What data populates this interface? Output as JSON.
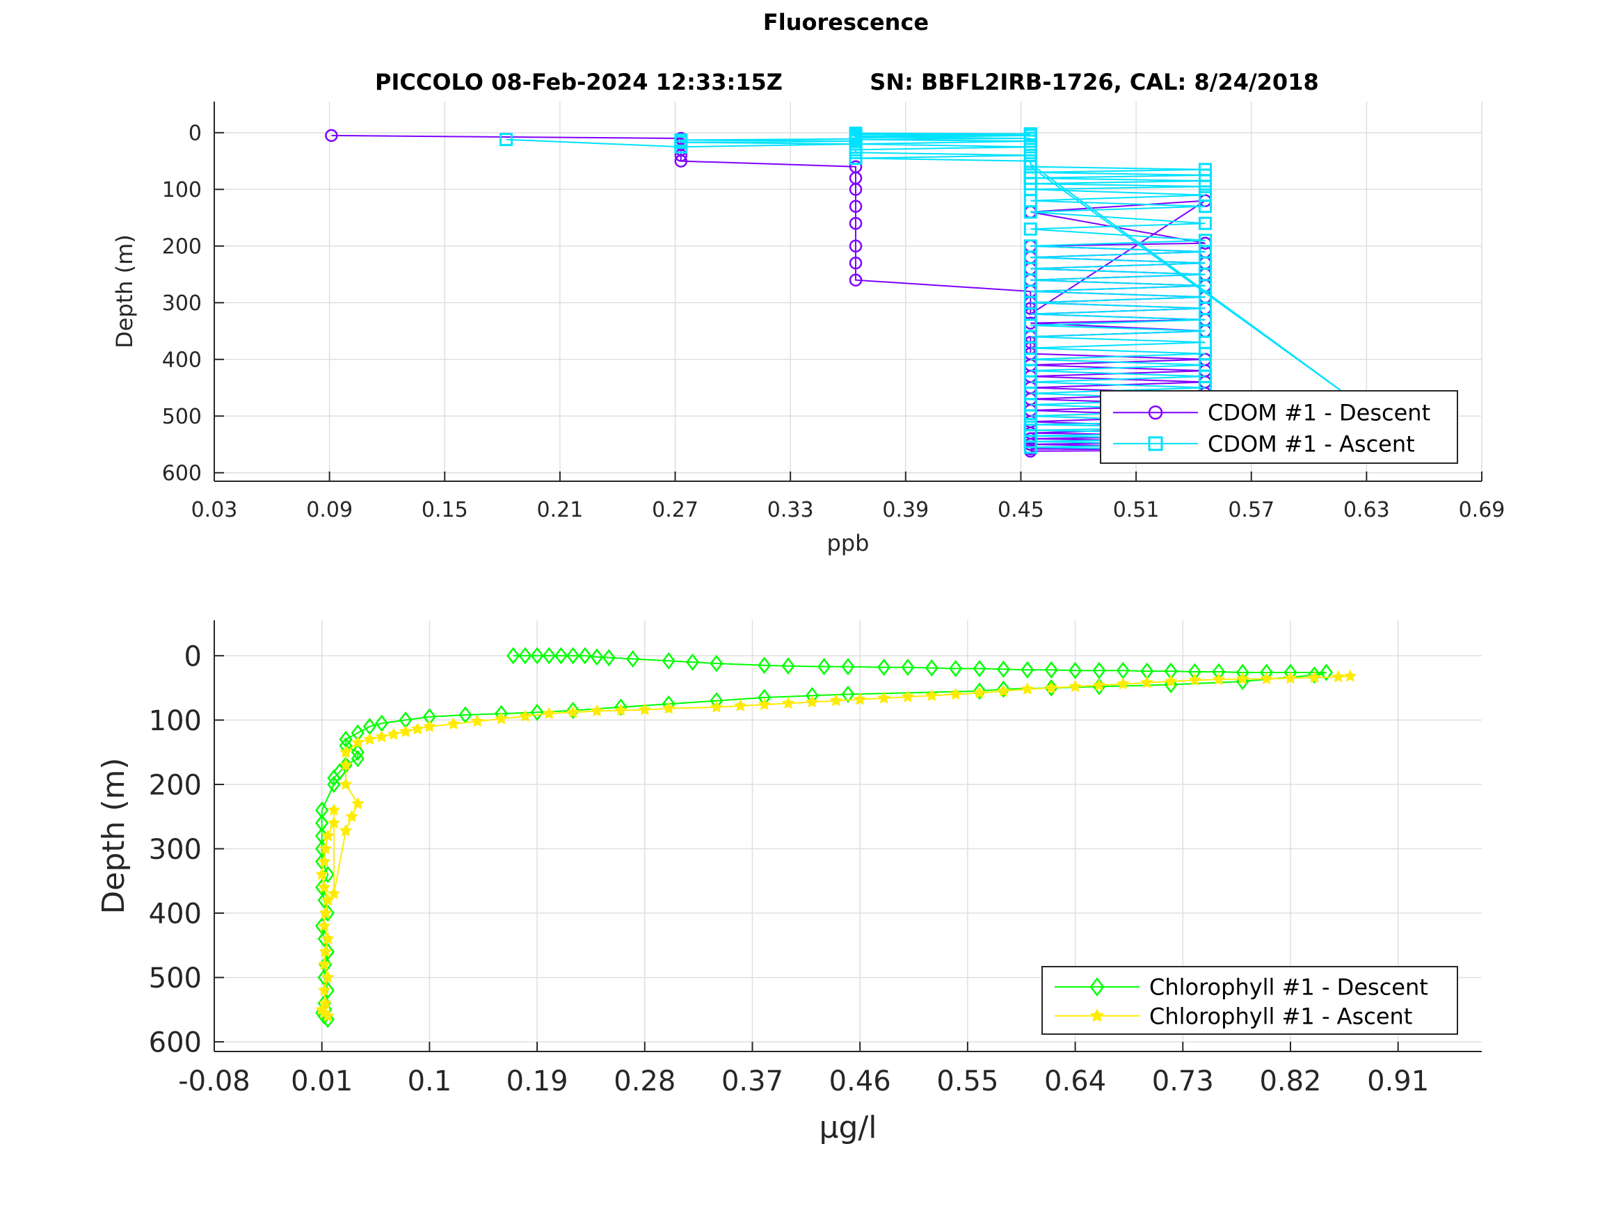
{
  "figure": {
    "title": "Fluorescence",
    "subtitle_left": "PICCOLO 08-Feb-2024 12:33:15Z",
    "subtitle_right": "SN: BBFL2IRB-1726, CAL: 8/24/2018"
  },
  "chart_data": [
    {
      "type": "line",
      "xlabel": "ppb",
      "ylabel": "Depth (m)",
      "xlim": [
        0.03,
        0.69
      ],
      "ylim": [
        -55,
        615
      ],
      "y_reversed": true,
      "xticks": [
        "0.03",
        "0.09",
        "0.15",
        "0.21",
        "0.27",
        "0.33",
        "0.39",
        "0.45",
        "0.51",
        "0.57",
        "0.63",
        "0.69"
      ],
      "yticks": [
        "0",
        "100",
        "200",
        "300",
        "400",
        "500",
        "600"
      ],
      "grid": true,
      "legend_position": "bottom-right",
      "series": [
        {
          "name": "CDOM #1 - Descent",
          "color": "#7f00ff",
          "marker": "circle",
          "x": [
            0.091,
            0.273,
            0.273,
            0.273,
            0.273,
            0.273,
            0.364,
            0.364,
            0.364,
            0.364,
            0.364,
            0.364,
            0.364,
            0.364,
            0.455,
            0.455,
            0.455,
            0.455,
            0.546,
            0.455,
            0.546,
            0.455,
            0.546,
            0.455,
            0.546,
            0.455,
            0.546,
            0.455,
            0.546,
            0.455,
            0.546,
            0.455,
            0.546,
            0.455,
            0.546,
            0.455,
            0.546,
            0.455,
            0.455,
            0.455,
            0.455,
            0.546,
            0.455,
            0.546,
            0.455,
            0.546,
            0.455,
            0.546,
            0.455,
            0.546,
            0.455,
            0.546,
            0.455,
            0.546,
            0.455,
            0.546,
            0.455,
            0.546,
            0.455,
            0.546,
            0.455,
            0.546,
            0.455
          ],
          "y": [
            5,
            10,
            20,
            30,
            40,
            50,
            60,
            80,
            100,
            130,
            160,
            200,
            230,
            260,
            280,
            300,
            310,
            320,
            120,
            140,
            195,
            200,
            210,
            220,
            230,
            240,
            250,
            260,
            270,
            280,
            290,
            300,
            310,
            320,
            330,
            336,
            350,
            360,
            370,
            380,
            390,
            400,
            410,
            420,
            430,
            440,
            450,
            460,
            470,
            480,
            490,
            500,
            510,
            520,
            530,
            535,
            540,
            545,
            550,
            555,
            558,
            560,
            562
          ]
        },
        {
          "name": "CDOM #1 - Ascent",
          "color": "#00e1ff",
          "marker": "square",
          "x": [
            0.546,
            0.455,
            0.546,
            0.455,
            0.546,
            0.455,
            0.546,
            0.455,
            0.546,
            0.455,
            0.546,
            0.455,
            0.546,
            0.455,
            0.546,
            0.455,
            0.546,
            0.455,
            0.546,
            0.455,
            0.546,
            0.455,
            0.546,
            0.455,
            0.546,
            0.455,
            0.546,
            0.455,
            0.546,
            0.455,
            0.546,
            0.455,
            0.546,
            0.455,
            0.546,
            0.455,
            0.546,
            0.455,
            0.546,
            0.455,
            0.546,
            0.455,
            0.546,
            0.455,
            0.546,
            0.455,
            0.546,
            0.455,
            0.546,
            0.455,
            0.546,
            0.455,
            0.546,
            0.455,
            0.546,
            0.455,
            0.546,
            0.455,
            0.637,
            0.455,
            0.455,
            0.364,
            0.455,
            0.364,
            0.364,
            0.455,
            0.364,
            0.455,
            0.364,
            0.455,
            0.364,
            0.364,
            0.455,
            0.364,
            0.455,
            0.364,
            0.455,
            0.364,
            0.364,
            0.273,
            0.364,
            0.273,
            0.364,
            0.273,
            0.182
          ],
          "y": [
            560,
            555,
            550,
            545,
            540,
            535,
            530,
            525,
            520,
            515,
            510,
            500,
            490,
            480,
            470,
            460,
            450,
            440,
            430,
            420,
            410,
            400,
            390,
            380,
            370,
            360,
            350,
            340,
            330,
            320,
            310,
            300,
            290,
            280,
            270,
            260,
            250,
            240,
            230,
            220,
            210,
            200,
            190,
            170,
            160,
            140,
            130,
            120,
            110,
            100,
            95,
            90,
            85,
            80,
            75,
            70,
            65,
            60,
            505,
            55,
            50,
            45,
            40,
            35,
            30,
            25,
            20,
            15,
            12,
            10,
            8,
            6,
            4,
            3,
            2,
            1,
            5,
            9,
            11,
            13,
            15,
            17,
            20,
            25,
            12
          ]
        }
      ]
    },
    {
      "type": "line",
      "xlabel": "μg/l",
      "ylabel": "Depth (m)",
      "xlim": [
        -0.08,
        0.98
      ],
      "ylim": [
        -55,
        615
      ],
      "y_reversed": true,
      "xticks": [
        "-0.08",
        "0.01",
        "0.1",
        "0.19",
        "0.28",
        "0.37",
        "0.46",
        "0.55",
        "0.64",
        "0.73",
        "0.82",
        "0.91"
      ],
      "yticks": [
        "0",
        "100",
        "200",
        "300",
        "400",
        "500",
        "600"
      ],
      "grid": true,
      "legend_position": "bottom-right",
      "series": [
        {
          "name": "Chlorophyll #1 - Descent",
          "color": "#00ff00",
          "marker": "diamond",
          "x": [
            0.17,
            0.18,
            0.19,
            0.2,
            0.21,
            0.22,
            0.23,
            0.24,
            0.25,
            0.27,
            0.3,
            0.32,
            0.34,
            0.38,
            0.4,
            0.43,
            0.45,
            0.48,
            0.5,
            0.52,
            0.54,
            0.56,
            0.58,
            0.6,
            0.62,
            0.64,
            0.66,
            0.68,
            0.7,
            0.72,
            0.74,
            0.76,
            0.78,
            0.8,
            0.82,
            0.85,
            0.84,
            0.78,
            0.72,
            0.66,
            0.62,
            0.58,
            0.56,
            0.45,
            0.42,
            0.38,
            0.34,
            0.3,
            0.26,
            0.22,
            0.19,
            0.16,
            0.13,
            0.1,
            0.08,
            0.06,
            0.05,
            0.04,
            0.03,
            0.03,
            0.04,
            0.04,
            0.03,
            0.025,
            0.02,
            0.02,
            0.01,
            0.01,
            0.01,
            0.01,
            0.01,
            0.015,
            0.01,
            0.012,
            0.015,
            0.01,
            0.012,
            0.015,
            0.013,
            0.012,
            0.015,
            0.012,
            0.013,
            0.01,
            0.012,
            0.015
          ],
          "y": [
            0,
            0,
            0,
            0,
            0,
            0,
            0,
            2,
            3,
            5,
            8,
            10,
            12,
            15,
            16,
            17,
            17,
            18,
            18,
            19,
            20,
            20,
            21,
            22,
            22,
            23,
            23,
            23,
            24,
            24,
            25,
            25,
            26,
            26,
            26,
            26,
            30,
            40,
            45,
            48,
            50,
            52,
            55,
            60,
            62,
            65,
            70,
            75,
            80,
            85,
            88,
            90,
            92,
            95,
            100,
            105,
            110,
            120,
            130,
            140,
            150,
            160,
            170,
            180,
            190,
            200,
            240,
            260,
            280,
            300,
            320,
            340,
            360,
            380,
            400,
            420,
            440,
            460,
            480,
            500,
            520,
            540,
            550,
            555,
            560,
            565
          ]
        },
        {
          "name": "Chlorophyll #1 - Ascent",
          "color": "#ffeb00",
          "marker": "star",
          "x": [
            0.87,
            0.86,
            0.84,
            0.82,
            0.8,
            0.78,
            0.76,
            0.74,
            0.72,
            0.7,
            0.68,
            0.66,
            0.64,
            0.62,
            0.6,
            0.58,
            0.56,
            0.54,
            0.52,
            0.5,
            0.48,
            0.46,
            0.44,
            0.42,
            0.4,
            0.38,
            0.36,
            0.34,
            0.3,
            0.28,
            0.26,
            0.24,
            0.22,
            0.2,
            0.18,
            0.16,
            0.14,
            0.12,
            0.1,
            0.09,
            0.08,
            0.07,
            0.06,
            0.05,
            0.04,
            0.03,
            0.03,
            0.03,
            0.04,
            0.035,
            0.03,
            0.02,
            0.02,
            0.02,
            0.015,
            0.013,
            0.012,
            0.01,
            0.012,
            0.015,
            0.013,
            0.012,
            0.015,
            0.013,
            0.012,
            0.015,
            0.012,
            0.013,
            0.01,
            0.012,
            0.015
          ],
          "y": [
            32,
            33,
            34,
            35,
            36,
            36,
            37,
            38,
            40,
            42,
            44,
            46,
            48,
            50,
            52,
            55,
            58,
            60,
            62,
            64,
            66,
            68,
            70,
            72,
            74,
            76,
            78,
            80,
            82,
            84,
            85,
            86,
            88,
            90,
            94,
            98,
            102,
            106,
            110,
            114,
            118,
            122,
            126,
            130,
            135,
            150,
            170,
            200,
            230,
            250,
            272,
            370,
            240,
            260,
            280,
            300,
            320,
            340,
            360,
            380,
            400,
            420,
            440,
            460,
            480,
            500,
            520,
            540,
            550,
            555,
            560
          ]
        }
      ]
    }
  ]
}
